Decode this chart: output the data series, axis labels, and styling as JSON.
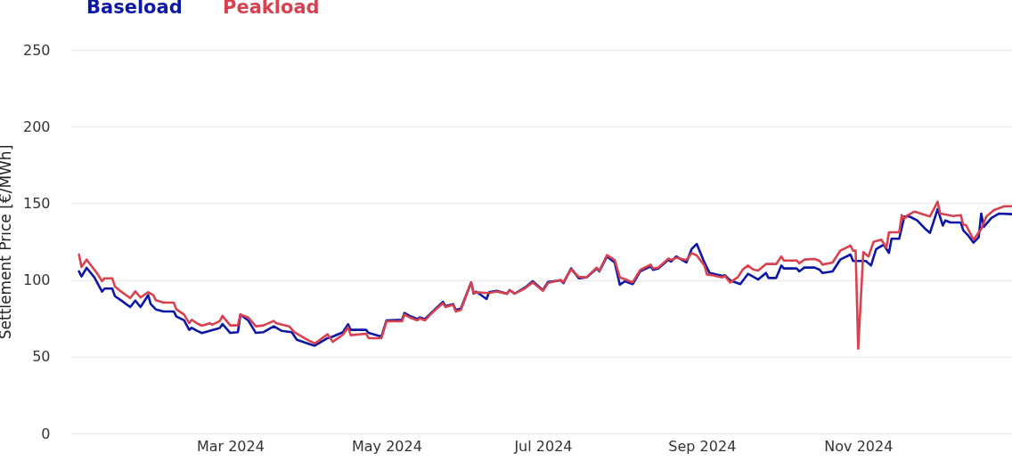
{
  "chart_data": {
    "type": "line",
    "ylabel": "Settlement Price [€/MWh]",
    "ylim": [
      0,
      250
    ],
    "yticks": [
      0,
      50,
      100,
      150,
      200,
      250
    ],
    "xlim": [
      "2023-12-30",
      "2024-12-31"
    ],
    "xticks": [
      {
        "value": "2024-03-01",
        "label": "Mar 2024"
      },
      {
        "value": "2024-05-01",
        "label": "May 2024"
      },
      {
        "value": "2024-07-01",
        "label": "Jul 2024"
      },
      {
        "value": "2024-09-01",
        "label": "Sep 2024"
      },
      {
        "value": "2024-11-01",
        "label": "Nov 2024"
      }
    ],
    "grid": "y",
    "legend": "top left",
    "marker": "none",
    "line_style": "solid",
    "series": [
      {
        "name": "Baseload",
        "color": "#0c17a6",
        "x": [
          "2024-01-02",
          "2024-01-03",
          "2024-01-05",
          "2024-01-08",
          "2024-01-11",
          "2024-01-12",
          "2024-01-15",
          "2024-01-16",
          "2024-01-18",
          "2024-01-22",
          "2024-01-24",
          "2024-01-26",
          "2024-01-29",
          "2024-01-30",
          "2024-02-01",
          "2024-02-04",
          "2024-02-08",
          "2024-02-09",
          "2024-02-12",
          "2024-02-14",
          "2024-02-15",
          "2024-02-17",
          "2024-02-19",
          "2024-02-22",
          "2024-02-26",
          "2024-02-27",
          "2024-03-01",
          "2024-03-04",
          "2024-03-05",
          "2024-03-08",
          "2024-03-11",
          "2024-03-14",
          "2024-03-18",
          "2024-03-21",
          "2024-03-25",
          "2024-03-27",
          "2024-04-01",
          "2024-04-03",
          "2024-04-08",
          "2024-04-10",
          "2024-04-14",
          "2024-04-16",
          "2024-04-17",
          "2024-04-23",
          "2024-04-24",
          "2024-04-29",
          "2024-05-01",
          "2024-05-07",
          "2024-05-08",
          "2024-05-10",
          "2024-05-13",
          "2024-05-14",
          "2024-05-16",
          "2024-05-19",
          "2024-05-23",
          "2024-05-24",
          "2024-05-27",
          "2024-05-28",
          "2024-05-30",
          "2024-06-03",
          "2024-06-04",
          "2024-06-05",
          "2024-06-09",
          "2024-06-10",
          "2024-06-13",
          "2024-06-17",
          "2024-06-18",
          "2024-06-20",
          "2024-06-24",
          "2024-06-27",
          "2024-07-01",
          "2024-07-03",
          "2024-07-08",
          "2024-07-09",
          "2024-07-12",
          "2024-07-15",
          "2024-07-18",
          "2024-07-22",
          "2024-07-23",
          "2024-07-26",
          "2024-07-29",
          "2024-07-31",
          "2024-08-02",
          "2024-08-05",
          "2024-08-08",
          "2024-08-12",
          "2024-08-13",
          "2024-08-15",
          "2024-08-19",
          "2024-08-20",
          "2024-08-22",
          "2024-08-26",
          "2024-08-28",
          "2024-08-30",
          "2024-09-02",
          "2024-09-04",
          "2024-09-05",
          "2024-09-09",
          "2024-09-10",
          "2024-09-12",
          "2024-09-16",
          "2024-09-19",
          "2024-09-23",
          "2024-09-26",
          "2024-09-27",
          "2024-09-30",
          "2024-10-02",
          "2024-10-03",
          "2024-10-08",
          "2024-10-09",
          "2024-10-11",
          "2024-10-15",
          "2024-10-17",
          "2024-10-18",
          "2024-10-22",
          "2024-10-25",
          "2024-10-29",
          "2024-10-30",
          "2024-11-04",
          "2024-11-06",
          "2024-11-08",
          "2024-11-11",
          "2024-11-13",
          "2024-11-14",
          "2024-11-17",
          "2024-11-19",
          "2024-11-21",
          "2024-11-24",
          "2024-11-27",
          "2024-11-29",
          "2024-12-02",
          "2024-12-04",
          "2024-12-05",
          "2024-12-07",
          "2024-12-11",
          "2024-12-12",
          "2024-12-14",
          "2024-12-16",
          "2024-12-18",
          "2024-12-19",
          "2024-12-20",
          "2024-12-23",
          "2024-12-26",
          "2024-12-31"
        ],
        "values": [
          105.6,
          102.3,
          107.9,
          101.7,
          92.4,
          94.4,
          94.4,
          89.5,
          87.2,
          82.4,
          86.6,
          82.4,
          90.1,
          84.3,
          80.8,
          79.5,
          79.5,
          76.2,
          73.7,
          67.5,
          68.8,
          66.9,
          65.4,
          66.9,
          68.8,
          71.3,
          65.5,
          66.0,
          77.5,
          73.7,
          65.5,
          66.0,
          69.8,
          66.9,
          66.0,
          61.1,
          58.2,
          57.2,
          62.1,
          63.1,
          66.0,
          71.2,
          67.5,
          67.5,
          65.5,
          63.1,
          73.7,
          74.0,
          78.5,
          76.6,
          74.6,
          75.6,
          74.6,
          79.5,
          85.7,
          82.9,
          84.3,
          80.5,
          81.4,
          98.4,
          91.1,
          92.4,
          87.6,
          92.0,
          93.0,
          91.1,
          93.4,
          91.1,
          95.0,
          99.2,
          93.4,
          98.8,
          99.8,
          97.9,
          107.5,
          101.1,
          101.7,
          107.5,
          105.6,
          115.3,
          111.4,
          96.9,
          99.2,
          97.3,
          105.6,
          108.9,
          106.6,
          107.5,
          113.3,
          112.0,
          115.3,
          111.4,
          120.1,
          123.5,
          111.4,
          104.6,
          104.2,
          102.7,
          103.1,
          99.8,
          97.3,
          104.0,
          100.3,
          104.6,
          101.3,
          101.3,
          109.4,
          107.5,
          107.5,
          105.6,
          108.1,
          108.1,
          106.6,
          104.6,
          105.6,
          113.3,
          116.6,
          112.4,
          112.4,
          109.4,
          120.1,
          123.0,
          117.6,
          126.9,
          126.9,
          141.4,
          141.4,
          138.8,
          133.6,
          130.7,
          146.2,
          135.5,
          138.8,
          137.5,
          137.5,
          132.3,
          128.8,
          124.3,
          127.8,
          143.3,
          134.6,
          140.4,
          143.3,
          142.9
        ]
      },
      {
        "name": "Peakload",
        "color": "#d8424f",
        "x": [
          "2024-01-02",
          "2024-01-03",
          "2024-01-05",
          "2024-01-09",
          "2024-01-11",
          "2024-01-12",
          "2024-01-15",
          "2024-01-16",
          "2024-01-18",
          "2024-01-22",
          "2024-01-24",
          "2024-01-26",
          "2024-01-29",
          "2024-01-31",
          "2024-02-01",
          "2024-02-04",
          "2024-02-08",
          "2024-02-09",
          "2024-02-12",
          "2024-02-14",
          "2024-02-15",
          "2024-02-17",
          "2024-02-19",
          "2024-02-22",
          "2024-02-23",
          "2024-02-26",
          "2024-02-27",
          "2024-03-01",
          "2024-03-04",
          "2024-03-05",
          "2024-03-08",
          "2024-03-11",
          "2024-03-14",
          "2024-03-18",
          "2024-03-19",
          "2024-03-24",
          "2024-03-26",
          "2024-03-31",
          "2024-04-03",
          "2024-04-08",
          "2024-04-10",
          "2024-04-14",
          "2024-04-16",
          "2024-04-17",
          "2024-04-23",
          "2024-04-24",
          "2024-04-29",
          "2024-05-01",
          "2024-05-07",
          "2024-05-08",
          "2024-05-10",
          "2024-05-13",
          "2024-05-14",
          "2024-05-16",
          "2024-05-19",
          "2024-05-23",
          "2024-05-24",
          "2024-05-27",
          "2024-05-28",
          "2024-05-30",
          "2024-06-03",
          "2024-06-04",
          "2024-06-05",
          "2024-06-09",
          "2024-06-10",
          "2024-06-13",
          "2024-06-17",
          "2024-06-18",
          "2024-06-20",
          "2024-06-24",
          "2024-06-27",
          "2024-07-01",
          "2024-07-03",
          "2024-07-08",
          "2024-07-09",
          "2024-07-12",
          "2024-07-15",
          "2024-07-18",
          "2024-07-22",
          "2024-07-23",
          "2024-07-26",
          "2024-07-29",
          "2024-07-31",
          "2024-08-02",
          "2024-08-05",
          "2024-08-08",
          "2024-08-12",
          "2024-08-13",
          "2024-08-15",
          "2024-08-19",
          "2024-08-20",
          "2024-08-22",
          "2024-08-26",
          "2024-08-28",
          "2024-08-30",
          "2024-09-02",
          "2024-09-03",
          "2024-09-05",
          "2024-09-09",
          "2024-09-10",
          "2024-09-12",
          "2024-09-15",
          "2024-09-17",
          "2024-09-19",
          "2024-09-21",
          "2024-09-23",
          "2024-09-26",
          "2024-09-30",
          "2024-10-02",
          "2024-10-03",
          "2024-10-08",
          "2024-10-09",
          "2024-10-11",
          "2024-10-15",
          "2024-10-17",
          "2024-10-18",
          "2024-10-22",
          "2024-10-25",
          "2024-10-29",
          "2024-10-30",
          "2024-10-31",
          "2024-11-01",
          "2024-11-03",
          "2024-11-05",
          "2024-11-07",
          "2024-11-10",
          "2024-11-12",
          "2024-11-13",
          "2024-11-17",
          "2024-11-18",
          "2024-11-19",
          "2024-11-20",
          "2024-11-23",
          "2024-11-29",
          "2024-12-02",
          "2024-12-03",
          "2024-12-05",
          "2024-12-08",
          "2024-12-11",
          "2024-12-12",
          "2024-12-13",
          "2024-12-16",
          "2024-12-19",
          "2024-12-21",
          "2024-12-24",
          "2024-12-28",
          "2024-12-31"
        ],
        "values": [
          116.6,
          108.5,
          113.3,
          104.6,
          99.2,
          101.1,
          101.1,
          95.9,
          93.0,
          88.2,
          92.6,
          88.6,
          92.0,
          90.1,
          86.8,
          85.3,
          85.3,
          80.8,
          77.5,
          71.8,
          74.1,
          71.8,
          70.2,
          71.8,
          70.8,
          73.3,
          76.6,
          70.4,
          70.4,
          77.5,
          75.6,
          69.8,
          70.4,
          73.3,
          71.8,
          69.8,
          66.0,
          61.1,
          58.6,
          64.6,
          59.7,
          64.4,
          69.2,
          64.0,
          65.0,
          62.1,
          62.1,
          73.1,
          73.1,
          77.5,
          75.6,
          73.7,
          75.0,
          73.7,
          79.0,
          84.8,
          82.4,
          83.8,
          79.5,
          80.5,
          98.4,
          91.5,
          92.0,
          91.5,
          91.5,
          92.5,
          91.0,
          93.4,
          91.1,
          94.5,
          98.4,
          93.0,
          98.0,
          100.0,
          98.5,
          106.9,
          102.0,
          101.7,
          108.0,
          106.0,
          116.2,
          113.0,
          101.7,
          100.5,
          98.5,
          106.6,
          110.0,
          107.5,
          108.0,
          114.0,
          113.0,
          114.5,
          113.0,
          117.5,
          116.0,
          109.4,
          103.6,
          103.1,
          101.7,
          102.7,
          98.4,
          101.7,
          106.9,
          109.4,
          106.9,
          106.1,
          110.4,
          110.4,
          115.3,
          112.7,
          112.7,
          110.8,
          113.3,
          113.7,
          112.4,
          110.0,
          111.4,
          119.1,
          122.4,
          119.1,
          119.1,
          55.3,
          118.2,
          115.3,
          124.9,
          126.3,
          121.1,
          131.1,
          131.1,
          142.3,
          139.8,
          141.9,
          144.6,
          141.4,
          151.0,
          143.3,
          142.7,
          141.7,
          142.3,
          135.9,
          135.9,
          126.3,
          133.2,
          141.4,
          145.6,
          148.1,
          148.1
        ]
      }
    ]
  }
}
